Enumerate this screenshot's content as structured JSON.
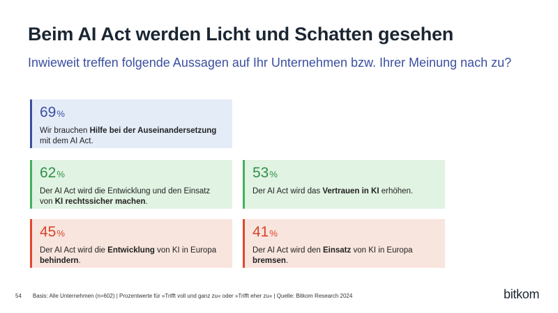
{
  "title": "Beim AI Act werden Licht und Schatten gesehen",
  "subtitle": "Inwieweit treffen folgende Aussagen auf Ihr Unternehmen bzw. Ihrer Meinung nach zu?",
  "colors": {
    "blue": "#3b4fa0",
    "green": "#45b05d",
    "red": "#e0472e"
  },
  "chart_data": {
    "type": "bar",
    "title": "Beim AI Act werden Licht und Schatten gesehen",
    "categories": [
      "Wir brauchen Hilfe bei der Auseinandersetzung mit dem AI Act.",
      "Der AI Act wird die Entwicklung und den Einsatz von KI rechtssicher machen.",
      "Der AI Act wird das Vertrauen in KI erhöhen.",
      "Der AI Act wird die Entwicklung von KI in Europa behindern.",
      "Der AI Act wird den Einsatz von KI in Europa bremsen."
    ],
    "values": [
      69,
      62,
      53,
      45,
      41
    ],
    "unit": "%"
  },
  "cards": [
    {
      "value": "69",
      "unit": "%",
      "t1": "Wir brauchen ",
      "b1": "Hilfe bei der Auseinandersetzung",
      "t2": "mit dem AI Act.",
      "b2": "",
      "t3": ""
    },
    {
      "value": "62",
      "unit": "%",
      "t1": "Der AI Act wird die Entwicklung und den Einsatz",
      "b1": "",
      "t2": "von ",
      "b2": "KI rechtssicher machen",
      "t3": "."
    },
    {
      "value": "53",
      "unit": "%",
      "t1": "Der AI Act wird das ",
      "b1": "Vertrauen in KI",
      "t2": " erhöhen.",
      "b2": "",
      "t3": ""
    },
    {
      "value": "45",
      "unit": "%",
      "t1": "Der AI Act wird die ",
      "b1": "Entwicklung",
      "t2": " von KI in Europa",
      "b2": "behindern",
      "t3": "."
    },
    {
      "value": "41",
      "unit": "%",
      "t1": "Der AI Act wird den ",
      "b1": "Einsatz",
      "t2": " von KI in Europa",
      "b2": "bremsen",
      "t3": "."
    }
  ],
  "footer": {
    "page": "54",
    "note": "Basis: Alle Unternehmen (n=602) | Prozentwerte für »Trifft voll und ganz zu« oder »Trifft eher zu« | Quelle: Bitkom Research 2024"
  },
  "logo": "bitkom"
}
